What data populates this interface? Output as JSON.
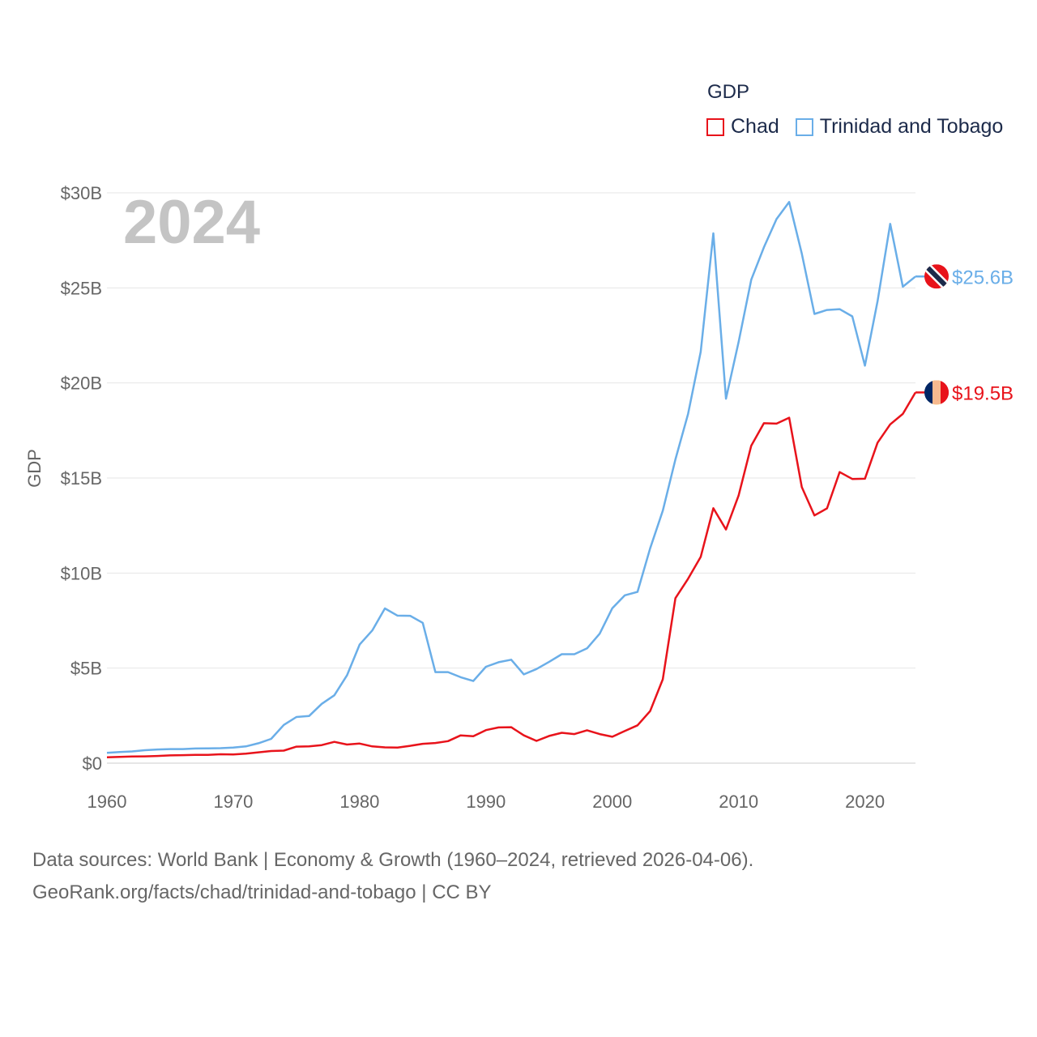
{
  "legend": {
    "title": "GDP",
    "items": [
      {
        "label": "Chad",
        "color": "#e8131b"
      },
      {
        "label": "Trinidad and Tobago",
        "color": "#6aaee8"
      }
    ]
  },
  "year_label": "2024",
  "footer": {
    "line1": "Data sources: World Bank | Economy & Growth (1960–2024, retrieved 2026-04-06).",
    "line2": "GeoRank.org/facts/chad/trinidad-and-tobago | CC BY"
  },
  "chart_data": {
    "type": "line",
    "title": "GDP",
    "xlabel": "",
    "ylabel": "GDP",
    "xlim": [
      1960,
      2024
    ],
    "ylim": [
      0,
      30
    ],
    "y_unit": "billion USD",
    "x_ticks": [
      "1960",
      "1970",
      "1980",
      "1990",
      "2000",
      "2010",
      "2020"
    ],
    "x_tick_values": [
      1960,
      1970,
      1980,
      1990,
      2000,
      2010,
      2020
    ],
    "y_ticks": [
      "$0",
      "$5B",
      "$10B",
      "$15B",
      "$20B",
      "$25B",
      "$30B"
    ],
    "y_tick_values": [
      0,
      5,
      10,
      15,
      20,
      25,
      30
    ],
    "grid": true,
    "x": [
      1960,
      1961,
      1962,
      1963,
      1964,
      1965,
      1966,
      1967,
      1968,
      1969,
      1970,
      1971,
      1972,
      1973,
      1974,
      1975,
      1976,
      1977,
      1978,
      1979,
      1980,
      1981,
      1982,
      1983,
      1984,
      1985,
      1986,
      1987,
      1988,
      1989,
      1990,
      1991,
      1992,
      1993,
      1994,
      1995,
      1996,
      1997,
      1998,
      1999,
      2000,
      2001,
      2002,
      2003,
      2004,
      2005,
      2006,
      2007,
      2008,
      2009,
      2010,
      2011,
      2012,
      2013,
      2014,
      2015,
      2016,
      2017,
      2018,
      2019,
      2020,
      2021,
      2022,
      2023,
      2024
    ],
    "series": [
      {
        "name": "Chad",
        "color": "#e8131b",
        "end_label": "$19.5B",
        "flag": "chad",
        "values": [
          0.31,
          0.33,
          0.35,
          0.36,
          0.38,
          0.41,
          0.42,
          0.44,
          0.44,
          0.47,
          0.46,
          0.5,
          0.57,
          0.64,
          0.66,
          0.87,
          0.88,
          0.95,
          1.12,
          0.98,
          1.03,
          0.88,
          0.83,
          0.82,
          0.91,
          1.02,
          1.06,
          1.16,
          1.46,
          1.42,
          1.74,
          1.88,
          1.89,
          1.46,
          1.17,
          1.43,
          1.6,
          1.53,
          1.73,
          1.53,
          1.39,
          1.69,
          1.99,
          2.74,
          4.41,
          8.68,
          9.7,
          10.85,
          13.41,
          12.29,
          14.08,
          16.7,
          17.88,
          17.86,
          18.17,
          14.52,
          13.03,
          13.4,
          15.31,
          14.95,
          14.96,
          16.86,
          17.82,
          18.37,
          19.5
        ]
      },
      {
        "name": "Trinidad and Tobago",
        "color": "#6aaee8",
        "end_label": "$25.6B",
        "flag": "trinidad-and-tobago",
        "values": [
          0.54,
          0.59,
          0.62,
          0.68,
          0.72,
          0.74,
          0.74,
          0.77,
          0.78,
          0.79,
          0.82,
          0.88,
          1.05,
          1.28,
          2.01,
          2.43,
          2.48,
          3.12,
          3.57,
          4.62,
          6.24,
          6.98,
          8.14,
          7.76,
          7.75,
          7.38,
          4.79,
          4.79,
          4.52,
          4.32,
          5.07,
          5.31,
          5.44,
          4.67,
          4.95,
          5.33,
          5.73,
          5.73,
          6.04,
          6.81,
          8.15,
          8.83,
          9.01,
          11.3,
          13.28,
          15.98,
          18.37,
          21.64,
          27.87,
          19.17,
          22.16,
          25.43,
          27.13,
          28.62,
          29.52,
          26.8,
          23.63,
          23.84,
          23.88,
          23.5,
          20.91,
          24.3,
          28.37,
          25.06,
          25.6
        ]
      }
    ]
  }
}
